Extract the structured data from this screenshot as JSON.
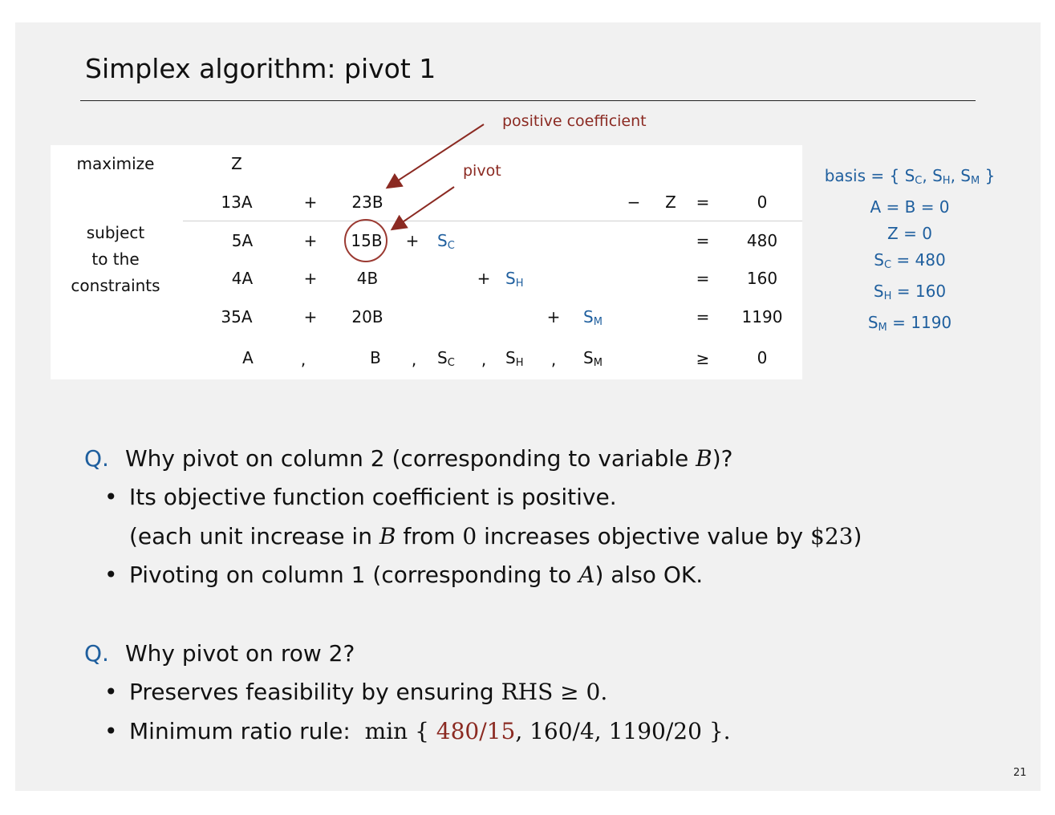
{
  "title": "Simplex algorithm: pivot 1",
  "annotations": {
    "positive": "positive coefficient",
    "pivot": "pivot"
  },
  "lp": {
    "maximize": "maximize",
    "Z": "Z",
    "subject": [
      "subject",
      "to the",
      "constraints"
    ],
    "objective": {
      "a": "13A",
      "plus": "+",
      "b": "23B",
      "minus": "−",
      "z": "Z",
      "eq": "=",
      "rhs": "0"
    },
    "rows": [
      {
        "a": "5A",
        "plus": "+",
        "b": "15B",
        "slack_plus": "+",
        "slack": "S",
        "slack_sub": "C",
        "eq": "=",
        "rhs": "480"
      },
      {
        "a": "4A",
        "plus": "+",
        "b": "4B",
        "slack_plus": "+",
        "slack": "S",
        "slack_sub": "H",
        "eq": "=",
        "rhs": "160"
      },
      {
        "a": "35A",
        "plus": "+",
        "b": "20B",
        "slack_plus": "+",
        "slack": "S",
        "slack_sub": "M",
        "eq": "=",
        "rhs": "1190"
      }
    ],
    "nonneg": {
      "a": "A",
      "b": "B",
      "sc": "S",
      "sc_sub": "C",
      "sh": "S",
      "sh_sub": "H",
      "sm": "S",
      "sm_sub": "M",
      "comma": ",",
      "geq": "≥",
      "rhs": "0"
    }
  },
  "basis": {
    "label": "basis = { ",
    "sc": "S",
    "sc_sub": "C",
    "sh": "S",
    "sh_sub": "H",
    "sm": "S",
    "sm_sub": "M",
    "close": " }",
    "ab": "A = B = 0",
    "z": "Z = 0",
    "sc_val": " = 480",
    "sh_val": " = 160",
    "sm_val": " = 1190"
  },
  "q1": {
    "mark": "Q.",
    "text_pre": "Why pivot on column 2 (corresponding to variable ",
    "var": "B",
    "text_post": ")?",
    "b1": "Its objective function coefficient is positive.",
    "b1b_pre": "(each unit increase in ",
    "b1b_var": "B",
    "b1b_mid": " from ",
    "b1b_zero": "0",
    "b1b_mid2": " increases objective value by ",
    "b1b_val": "$23",
    "b1b_post": ")",
    "b2_pre": "Pivoting on column 1 (corresponding to ",
    "b2_var": "A",
    "b2_post": ") also OK."
  },
  "q2": {
    "mark": "Q.",
    "text": "Why pivot on row 2?",
    "b1_pre": "Preserves feasibility by ensuring ",
    "b1_math": "RHS ≥ 0.",
    "b2_pre": "Minimum ratio rule:",
    "b2_min": "min { ",
    "b2_r1": "480/15",
    "b2_rest": ",  160/4,  1190/20 }."
  },
  "page_number": "21",
  "colors": {
    "accent": "#1f5f9e",
    "highlight": "#8b2a22",
    "background": "#f1f1f1"
  }
}
